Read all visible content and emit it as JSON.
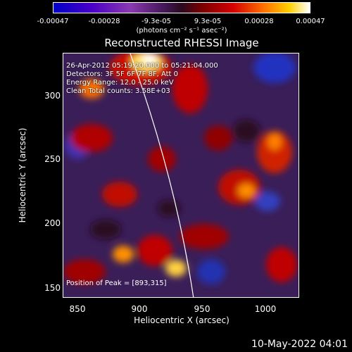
{
  "colorbar": {
    "ticks": [
      "-0.00047",
      "-0.00028",
      "-9.3e-05",
      "9.3e-05",
      "0.00028",
      "0.00047"
    ],
    "units": "(photons cm⁻² s⁻¹ asec⁻²)"
  },
  "title": "Reconstructed RHESSI Image",
  "info": {
    "line1": "26-Apr-2012 05:19:20.000 to 05:21:04.000",
    "line2": "Detectors: 3F 5F 6F 7F 8F, Att 0",
    "line3": "Energy Range: 12.0 - 25.0 keV",
    "line4": "Clean     Total counts: 3.58E+03"
  },
  "axes": {
    "xlabel": "Heliocentric X (arcsec)",
    "ylabel": "Heliocentric Y (arcsec)",
    "xticks": [
      "850",
      "900",
      "950",
      "1000"
    ],
    "yticks": [
      "300",
      "250",
      "200",
      "150"
    ]
  },
  "peak": "Position of Peak = [893,315]",
  "timestamp": "10-May-2022 04:01",
  "colors": {
    "limb_line": "#ffffff",
    "background_map": "#3a1e58"
  }
}
